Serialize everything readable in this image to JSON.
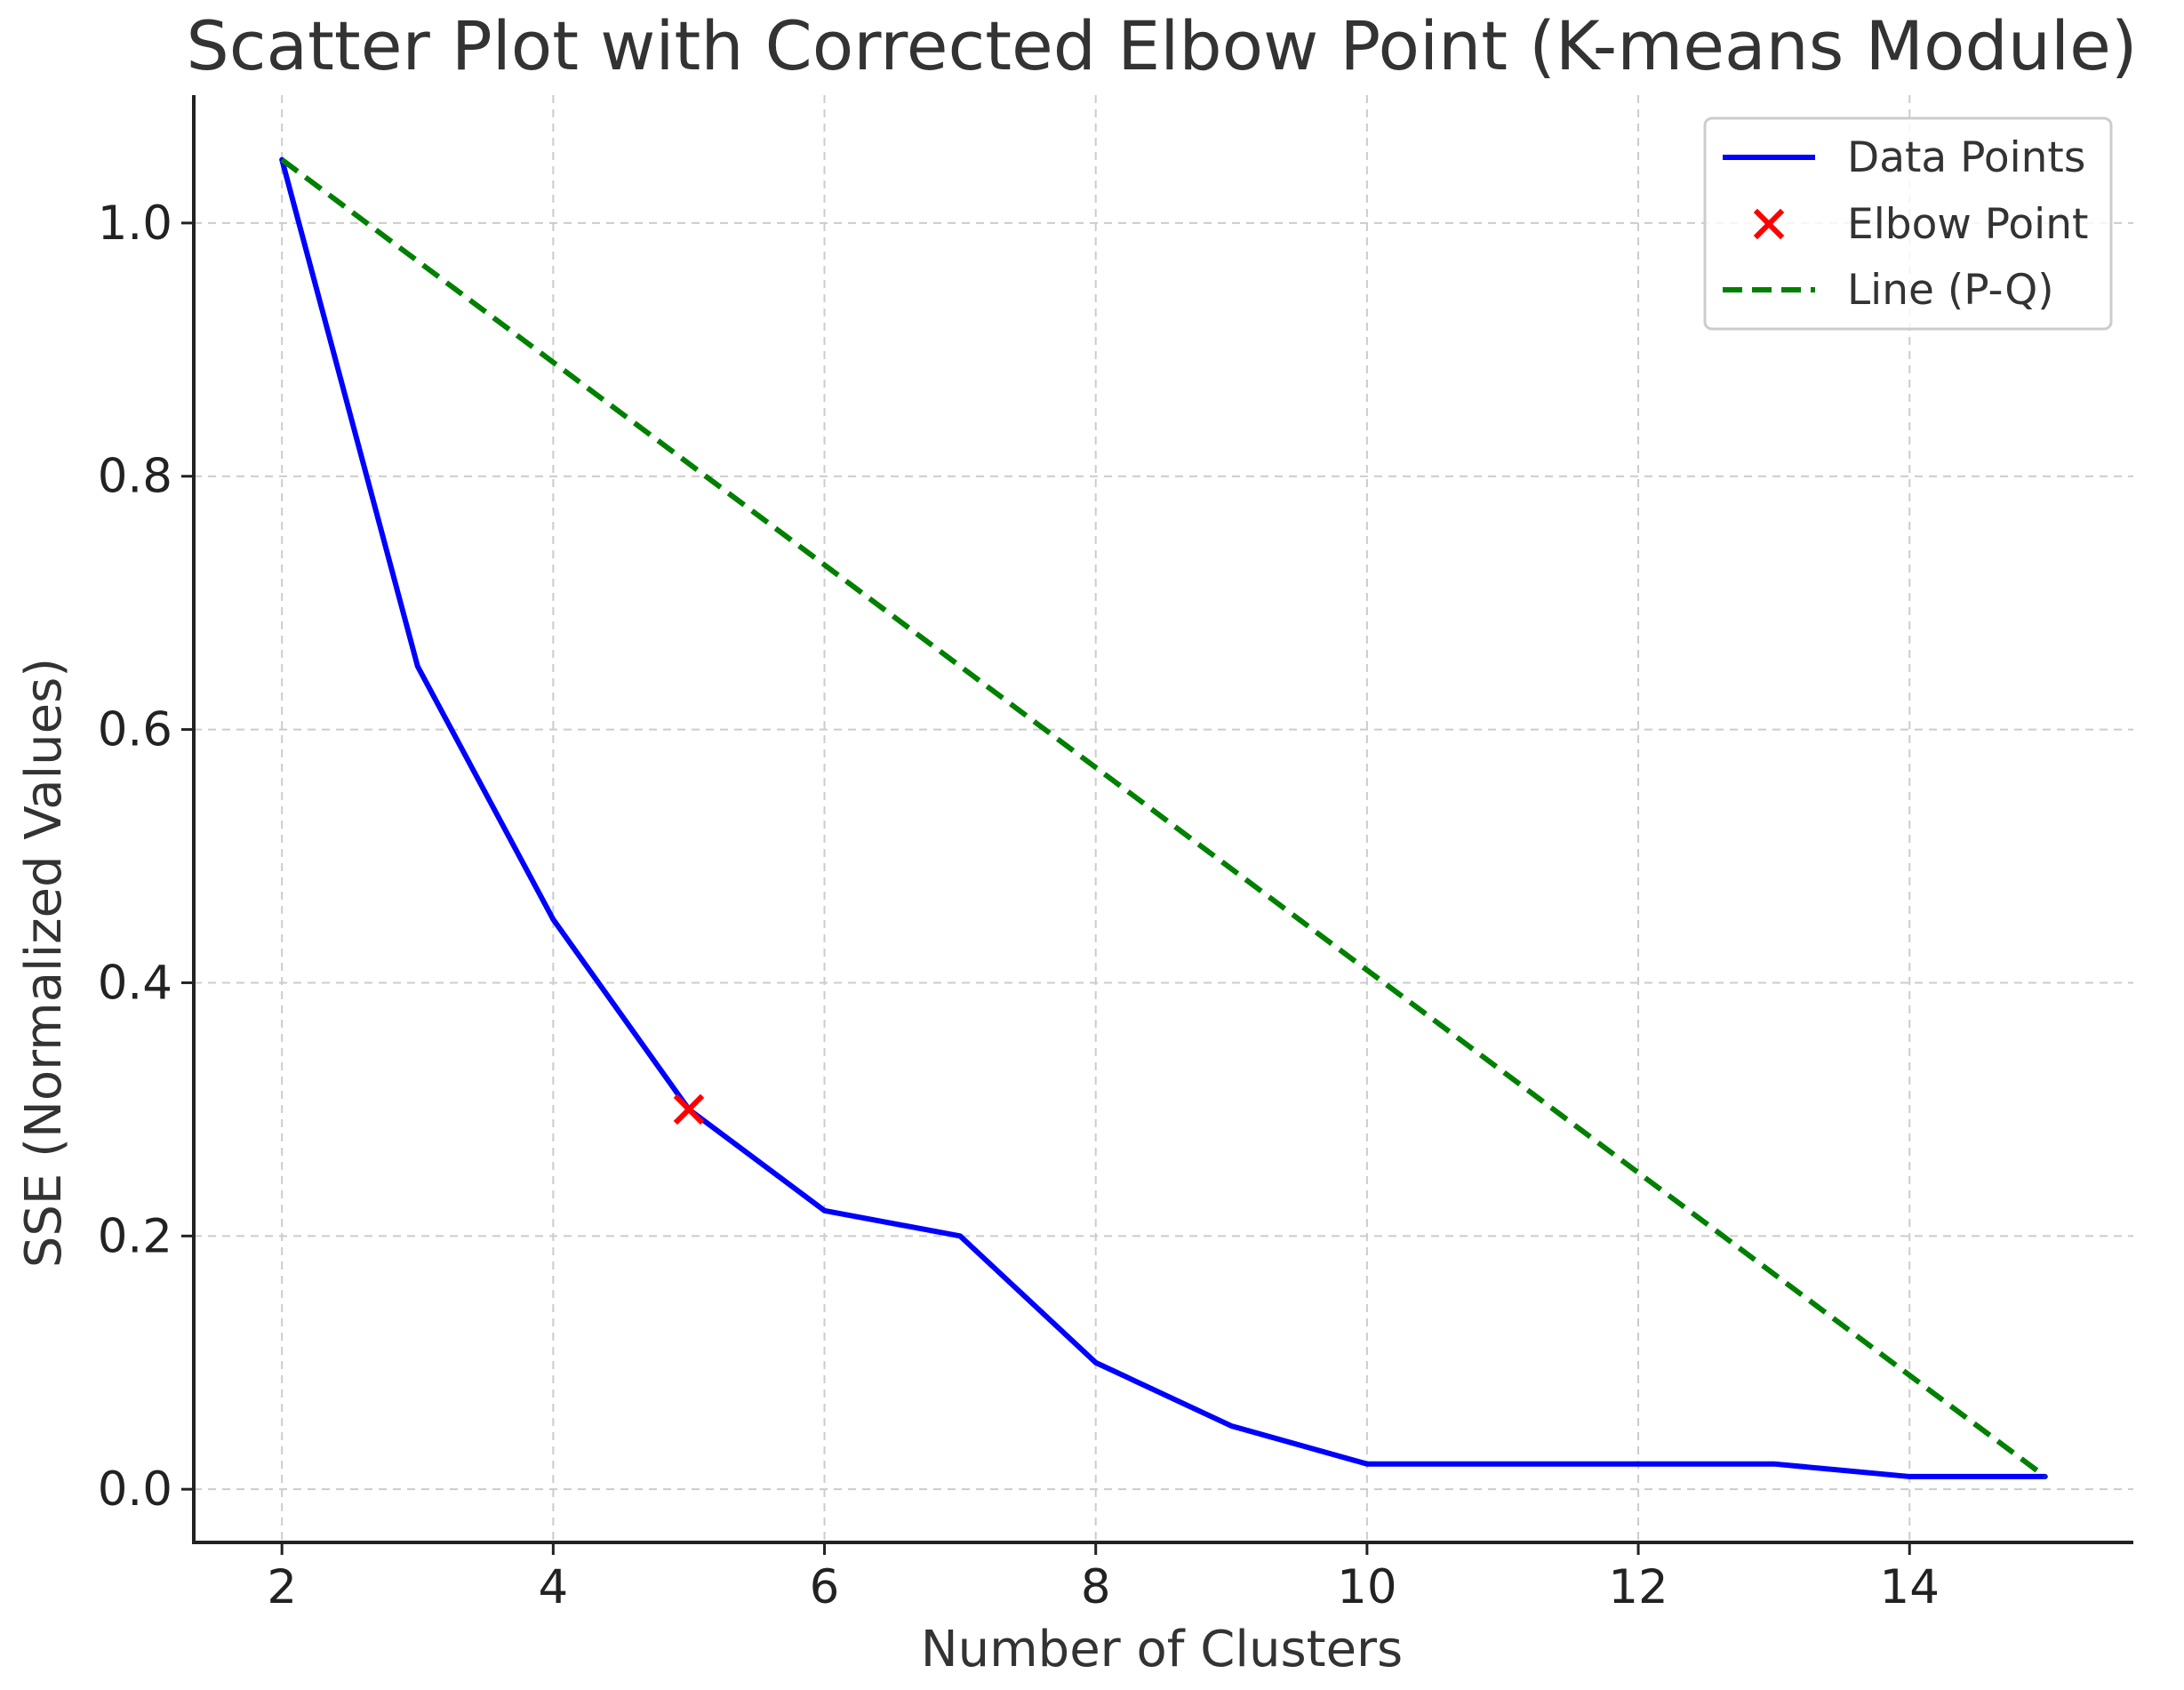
{
  "chart_data": {
    "type": "line",
    "title": "Scatter Plot with Corrected Elbow Point (K-means Module)",
    "xlabel": "Number of Clusters",
    "ylabel": "SSE (Normalized Values)",
    "xlim": [
      1.35,
      15.65
    ],
    "ylim": [
      -0.042,
      1.101
    ],
    "x_ticks": [
      2,
      4,
      6,
      8,
      10,
      12,
      14
    ],
    "y_ticks": [
      0.0,
      0.2,
      0.4,
      0.6,
      0.8,
      1.0
    ],
    "grid": true,
    "legend_position": "top-right",
    "series": [
      {
        "name": "Data Points",
        "kind": "line",
        "color": "#0000ff",
        "x": [
          2,
          3,
          4,
          5,
          6,
          7,
          8,
          9,
          10,
          11,
          12,
          13,
          14,
          15
        ],
        "y": [
          1.05,
          0.65,
          0.45,
          0.3,
          0.22,
          0.2,
          0.1,
          0.05,
          0.02,
          0.02,
          0.02,
          0.02,
          0.01,
          0.01
        ]
      },
      {
        "name": "Elbow Point",
        "kind": "marker",
        "marker": "x",
        "color": "#ff0000",
        "x": [
          5
        ],
        "y": [
          0.3
        ]
      },
      {
        "name": "Line (P-Q)",
        "kind": "dashed-line",
        "color": "#008000",
        "x": [
          2,
          15
        ],
        "y": [
          1.05,
          0.01
        ]
      }
    ]
  }
}
